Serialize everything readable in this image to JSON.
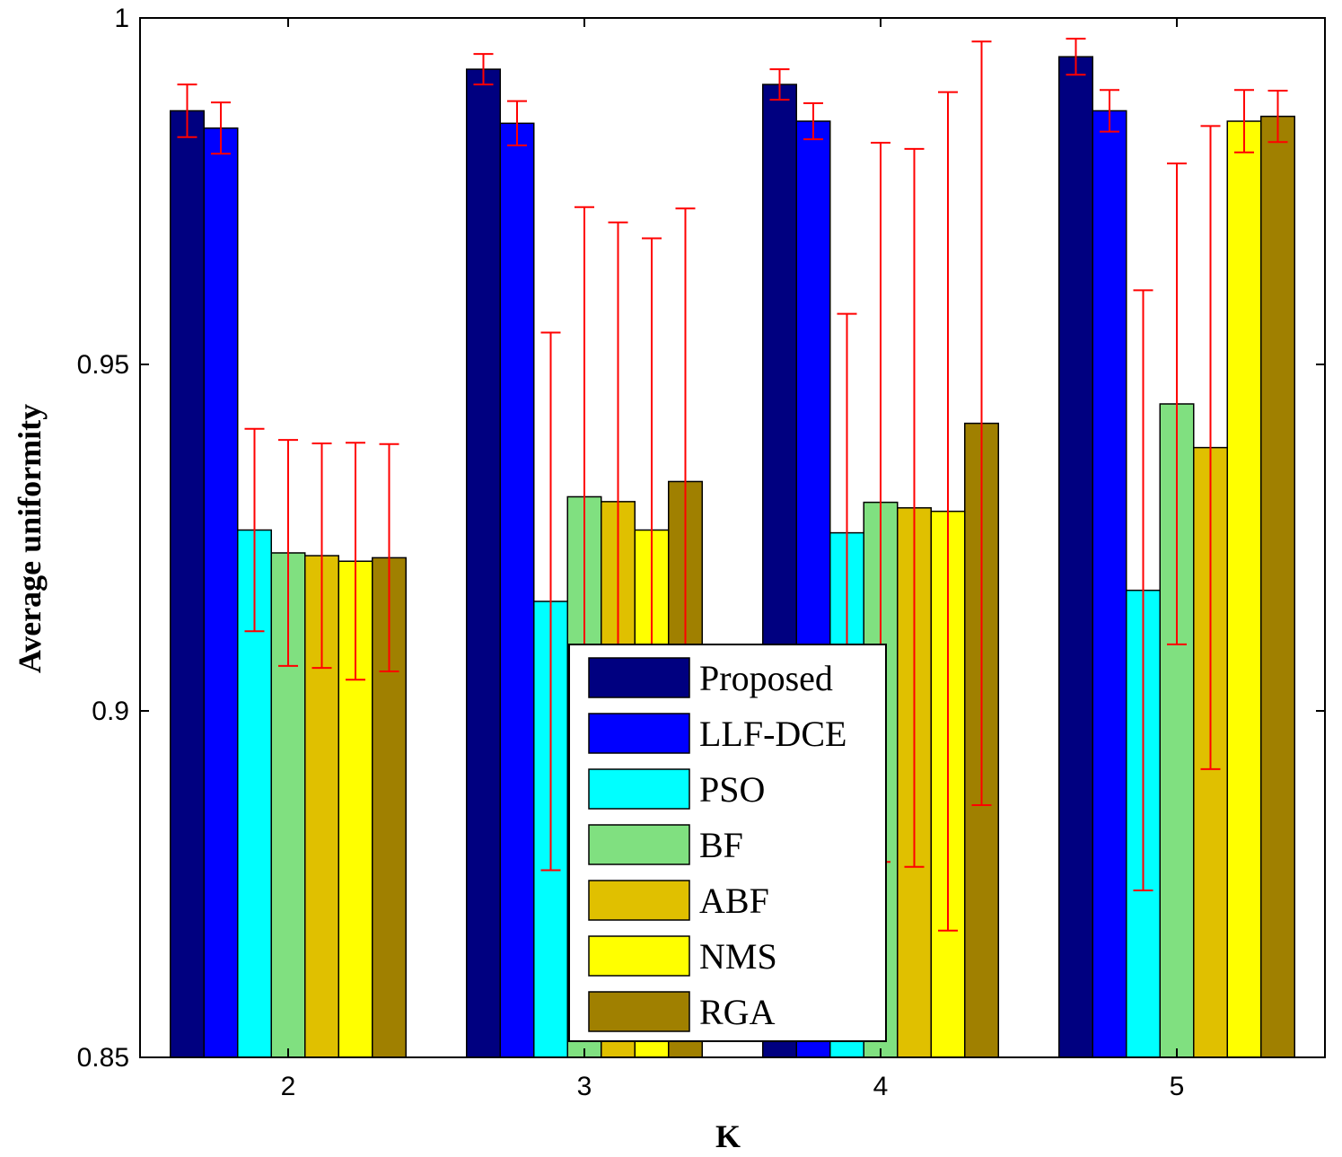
{
  "chart_data": {
    "type": "bar",
    "title": "",
    "xlabel": "K",
    "ylabel": "Average uniformity",
    "ylim": [
      0.85,
      1.0
    ],
    "yticks": [
      0.85,
      0.9,
      0.95,
      1.0
    ],
    "ytick_labels": [
      "0.85",
      "0.9",
      "0.95",
      "1"
    ],
    "categories": [
      "2",
      "3",
      "4",
      "5"
    ],
    "legend_position": "bottom-center",
    "error_bar_color": "#ff0000",
    "series": [
      {
        "name": "Proposed",
        "color": "#000080",
        "values": [
          0.9866,
          0.9926,
          0.9904,
          0.9944
        ],
        "errors": [
          0.0038,
          0.0022,
          0.0022,
          0.0026
        ]
      },
      {
        "name": "LLF-DCE",
        "color": "#0000ff",
        "values": [
          0.9841,
          0.9848,
          0.9851,
          0.9866
        ],
        "errors": [
          0.0037,
          0.0032,
          0.0026,
          0.003
        ]
      },
      {
        "name": "PSO",
        "color": "#00ffff",
        "values": [
          0.9261,
          0.9158,
          0.9257,
          0.9174
        ],
        "errors": [
          0.0146,
          0.0388,
          0.0316,
          0.0433
        ]
      },
      {
        "name": "BF",
        "color": "#80e080",
        "values": [
          0.9228,
          0.9309,
          0.9301,
          0.9443
        ],
        "errors": [
          0.0163,
          0.0418,
          0.0519,
          0.0347
        ]
      },
      {
        "name": "ABF",
        "color": "#e0c000",
        "values": [
          0.9224,
          0.9302,
          0.9293,
          0.938
        ],
        "errors": [
          0.0162,
          0.0403,
          0.0518,
          0.0464
        ]
      },
      {
        "name": "NMS",
        "color": "#ffff00",
        "values": [
          0.9216,
          0.9261,
          0.9288,
          0.9851
        ],
        "errors": [
          0.0171,
          0.0421,
          0.0605,
          0.0045
        ]
      },
      {
        "name": "RGA",
        "color": "#a08000",
        "values": [
          0.9221,
          0.9331,
          0.9415,
          0.9858
        ],
        "errors": [
          0.0164,
          0.0394,
          0.0551,
          0.0037
        ]
      }
    ]
  }
}
